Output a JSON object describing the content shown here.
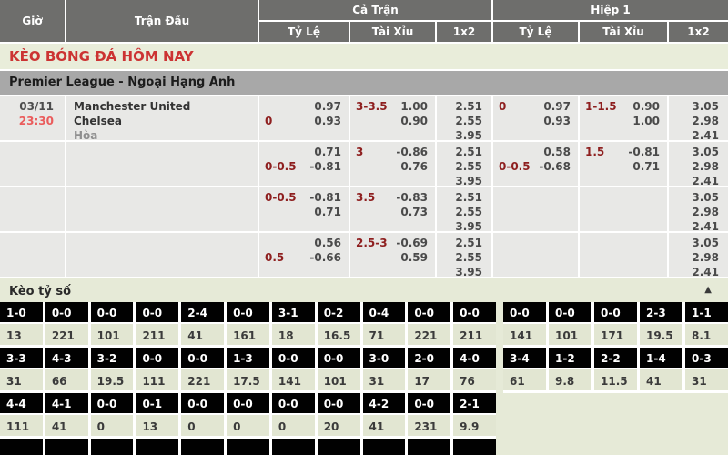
{
  "header": {
    "time": "Giờ",
    "match": "Trận Đấu",
    "full_time": "Cả Trận",
    "first_half": "Hiệp 1",
    "handicap": "Tỷ Lệ",
    "over_under": "Tài Xỉu",
    "one_x_two": "1x2"
  },
  "page_title": "KÈO BÓNG ĐÁ HÔM NAY",
  "league": "Premier League - Ngoại Hạng Anh",
  "match": {
    "date": "03/11",
    "time": "23:30",
    "home_team": "Manchester United",
    "away_team": "Chelsea",
    "draw_label": "Hòa"
  },
  "odds_rows": [
    {
      "ft_handicap": [
        [
          "",
          "0.97"
        ],
        [
          "0",
          "0.93"
        ]
      ],
      "ft_over_under": [
        [
          "3-3.5",
          "1.00"
        ],
        [
          "",
          "0.90"
        ]
      ],
      "ft_1x2": [
        "2.51",
        "2.55",
        "3.95"
      ],
      "h1_handicap": [
        [
          "0",
          "0.97"
        ],
        [
          "",
          "0.93"
        ]
      ],
      "h1_over_under": [
        [
          "1-1.5",
          "0.90"
        ],
        [
          "",
          "1.00"
        ]
      ],
      "h1_1x2": [
        "3.05",
        "2.98",
        "2.41"
      ]
    },
    {
      "ft_handicap": [
        [
          "",
          "0.71"
        ],
        [
          "0-0.5",
          "-0.81"
        ]
      ],
      "ft_over_under": [
        [
          "3",
          "-0.86"
        ],
        [
          "",
          "0.76"
        ]
      ],
      "ft_1x2": [
        "2.51",
        "2.55",
        "3.95"
      ],
      "h1_handicap": [
        [
          "",
          "0.58"
        ],
        [
          "0-0.5",
          "-0.68"
        ]
      ],
      "h1_over_under": [
        [
          "1.5",
          "-0.81"
        ],
        [
          "",
          "0.71"
        ]
      ],
      "h1_1x2": [
        "3.05",
        "2.98",
        "2.41"
      ]
    },
    {
      "ft_handicap": [
        [
          "0-0.5",
          "-0.81"
        ],
        [
          "",
          "0.71"
        ]
      ],
      "ft_over_under": [
        [
          "3.5",
          "-0.83"
        ],
        [
          "",
          "0.73"
        ]
      ],
      "ft_1x2": [
        "2.51",
        "2.55",
        "3.95"
      ],
      "h1_handicap": [
        [
          "",
          ""
        ],
        [
          "",
          ""
        ]
      ],
      "h1_over_under": [
        [
          "",
          ""
        ],
        [
          "",
          ""
        ]
      ],
      "h1_1x2": [
        "3.05",
        "2.98",
        "2.41"
      ]
    },
    {
      "ft_handicap": [
        [
          "",
          "0.56"
        ],
        [
          "0.5",
          "-0.66"
        ]
      ],
      "ft_over_under": [
        [
          "2.5-3",
          "-0.69"
        ],
        [
          "",
          "0.59"
        ]
      ],
      "ft_1x2": [
        "2.51",
        "2.55",
        "3.95"
      ],
      "h1_handicap": [
        [
          "",
          ""
        ],
        [
          "",
          ""
        ]
      ],
      "h1_over_under": [
        [
          "",
          ""
        ],
        [
          "",
          ""
        ]
      ],
      "h1_1x2": [
        "3.05",
        "2.98",
        "2.41"
      ]
    }
  ],
  "score_section": {
    "title": "Kèo tỷ số",
    "collapse_icon": "▲",
    "rows": [
      {
        "left": [
          {
            "score": "1-0",
            "odds": "13"
          },
          {
            "score": "0-0",
            "odds": "221"
          },
          {
            "score": "0-0",
            "odds": "101"
          },
          {
            "score": "0-0",
            "odds": "211"
          },
          {
            "score": "2-4",
            "odds": "41"
          },
          {
            "score": "0-0",
            "odds": "161"
          },
          {
            "score": "3-1",
            "odds": "18"
          },
          {
            "score": "0-2",
            "odds": "16.5"
          },
          {
            "score": "0-4",
            "odds": "71"
          },
          {
            "score": "0-0",
            "odds": "221"
          },
          {
            "score": "0-0",
            "odds": "211"
          }
        ],
        "right": [
          {
            "score": "0-0",
            "odds": "141"
          },
          {
            "score": "0-0",
            "odds": "101"
          },
          {
            "score": "0-0",
            "odds": "171"
          },
          {
            "score": "2-3",
            "odds": "19.5"
          },
          {
            "score": "1-1",
            "odds": "8.1"
          }
        ]
      },
      {
        "left": [
          {
            "score": "3-3",
            "odds": "31"
          },
          {
            "score": "4-3",
            "odds": "66"
          },
          {
            "score": "3-2",
            "odds": "19.5"
          },
          {
            "score": "0-0",
            "odds": "111"
          },
          {
            "score": "0-0",
            "odds": "221"
          },
          {
            "score": "1-3",
            "odds": "17.5"
          },
          {
            "score": "0-0",
            "odds": "141"
          },
          {
            "score": "0-0",
            "odds": "101"
          },
          {
            "score": "3-0",
            "odds": "31"
          },
          {
            "score": "2-0",
            "odds": "17"
          },
          {
            "score": "4-0",
            "odds": "76"
          }
        ],
        "right": [
          {
            "score": "3-4",
            "odds": "61"
          },
          {
            "score": "1-2",
            "odds": "9.8"
          },
          {
            "score": "2-2",
            "odds": "11.5"
          },
          {
            "score": "1-4",
            "odds": "41"
          },
          {
            "score": "0-3",
            "odds": "31"
          }
        ]
      },
      {
        "left": [
          {
            "score": "4-4",
            "odds": "111"
          },
          {
            "score": "4-1",
            "odds": "41"
          },
          {
            "score": "0-0",
            "odds": "0"
          },
          {
            "score": "0-1",
            "odds": "13"
          },
          {
            "score": "0-0",
            "odds": "0"
          },
          {
            "score": "0-0",
            "odds": "0"
          },
          {
            "score": "0-0",
            "odds": "0"
          },
          {
            "score": "0-0",
            "odds": "20"
          },
          {
            "score": "4-2",
            "odds": "41"
          },
          {
            "score": "0-0",
            "odds": "231"
          },
          {
            "score": "2-1",
            "odds": "9.9"
          }
        ],
        "right": []
      }
    ],
    "partial_row_cells": 11
  },
  "colors": {
    "header_bg": "#6e6e6c",
    "title_accent_red": "#cc3333",
    "handicap_maroon": "#8e1f1f",
    "time_red": "#ea5c5c",
    "score_cell_black": "#010101",
    "section_olive": "#e6ead7"
  }
}
